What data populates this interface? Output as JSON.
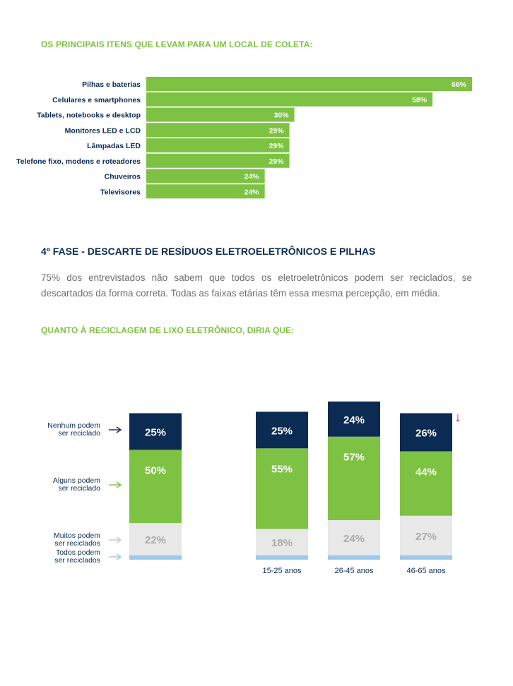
{
  "headings": {
    "items_title": "OS PRINCIPAIS ITENS QUE LEVAM PARA UM LOCAL DE COLETA:",
    "phase_title": "4º FASE - DESCARTE DE RESÍDUOS ELETROELETRÔNICOS E PILHAS",
    "phase_text": "75% dos entrevistados não sabem que todos os eletroeletrônicos podem ser reciclados, se descartados da forma correta. Todas as faixas etárias têm essa mesma percepção, em média.",
    "recycle_title": "QUANTO À RECICLAGEM DE LIXO ELETRÔNICO, DIRIA QUE:"
  },
  "colors": {
    "green": "#7dc242",
    "navy": "#0b2b52",
    "light_gray": "#e8e8e8",
    "light_blue": "#9cc9ea",
    "red_arrow": "#e4002b"
  },
  "chart_data": [
    {
      "type": "bar",
      "orientation": "horizontal",
      "title": "OS PRINCIPAIS ITENS QUE LEVAM PARA UM LOCAL DE COLETA:",
      "categories": [
        "Pilhas e baterias",
        "Celulares e smartphones",
        "Tablets, notebooks e desktop",
        "Monitores LED e LCD",
        "Lâmpadas LED",
        "Telefone fixo, modens e roteadores",
        "Chuveiros",
        "Televisores"
      ],
      "values": [
        66,
        58,
        30,
        29,
        29,
        29,
        24,
        24
      ],
      "value_labels": [
        "66%",
        "58%",
        "30%",
        "29%",
        "29%",
        "29%",
        "24%",
        "24%"
      ],
      "xlim": [
        0,
        66
      ]
    },
    {
      "type": "bar",
      "stacked": true,
      "title": "QUANTO À RECICLAGEM DE LIXO ELETRÔNICO, DIRIA QUE:",
      "categories": [
        "",
        "15-25 anos",
        "26-45 anos",
        "46-65 anos"
      ],
      "series": [
        {
          "name": "Todos podem ser reciclados",
          "values": [
            3,
            3,
            3,
            3
          ],
          "value_labels": [
            "",
            "",
            "",
            ""
          ]
        },
        {
          "name": "Muitos podem ser reciclados",
          "values": [
            22,
            18,
            24,
            27
          ],
          "value_labels": [
            "22%",
            "18%",
            "24%",
            "27%"
          ]
        },
        {
          "name": "Alguns podem ser reciclado",
          "values": [
            50,
            55,
            57,
            44
          ],
          "value_labels": [
            "50%",
            "55%",
            "57%",
            "44%"
          ]
        },
        {
          "name": "Nenhum podem ser reciclado",
          "values": [
            25,
            25,
            24,
            26
          ],
          "value_labels": [
            "25%",
            "25%",
            "24%",
            "26%"
          ]
        }
      ],
      "legend": [
        {
          "line1": "Nenhum podem",
          "line2": "ser reciclado"
        },
        {
          "line1": "Alguns podem",
          "line2": "ser reciclado"
        },
        {
          "line1": "Muitos podem",
          "line2": "ser reciclados"
        },
        {
          "line1": "Todos podem",
          "line2": "ser reciclados"
        }
      ],
      "legend_position": "left",
      "annotation": "↓"
    }
  ]
}
